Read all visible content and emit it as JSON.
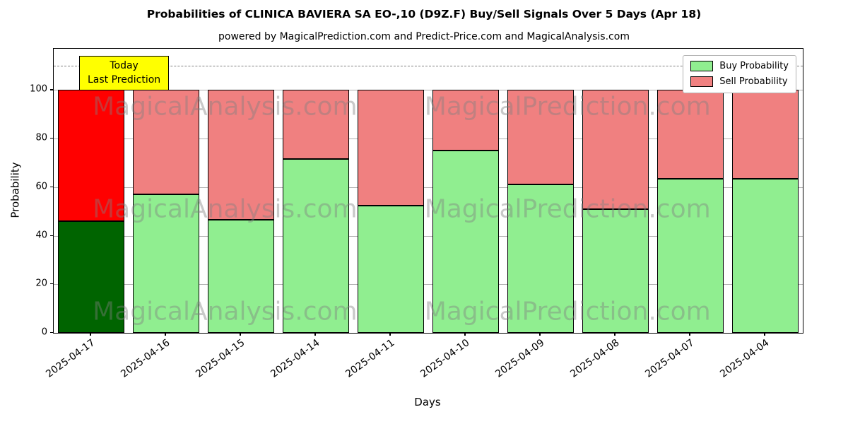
{
  "chart_data": {
    "type": "bar",
    "stacked": true,
    "title": "Probabilities of CLINICA BAVIERA SA EO-,10 (D9Z.F) Buy/Sell Signals Over 5 Days (Apr 18)",
    "subtitle": "powered by MagicalPrediction.com and Predict-Price.com and MagicalAnalysis.com",
    "xlabel": "Days",
    "ylabel": "Probability",
    "categories": [
      "2025-04-17",
      "2025-04-16",
      "2025-04-15",
      "2025-04-14",
      "2025-04-11",
      "2025-04-10",
      "2025-04-09",
      "2025-04-08",
      "2025-04-07",
      "2025-04-04"
    ],
    "series": [
      {
        "name": "Buy Probability",
        "color": "#90ee90",
        "values": [
          46,
          57,
          46.5,
          71.5,
          52.5,
          75,
          61,
          51,
          63.5,
          63.5
        ]
      },
      {
        "name": "Sell Probability",
        "color": "#f08080",
        "values": [
          54,
          43,
          53.5,
          28.5,
          47.5,
          25,
          39,
          49,
          36.5,
          36.5
        ]
      }
    ],
    "highlight": {
      "index": 0,
      "buy_color": "#006400",
      "sell_color": "#ff0000"
    },
    "ylim": [
      0,
      117
    ],
    "yticks": [
      0,
      20,
      40,
      60,
      80,
      100
    ],
    "dashed_line_y": 110,
    "grid": true,
    "legend_position": "top-right",
    "annotation": {
      "line1": "Today",
      "line2": "Last Prediction",
      "bg": "#ffff00"
    },
    "watermarks": [
      {
        "text": "MagicalAnalysis.com",
        "x": 0.052,
        "y": 0.205
      },
      {
        "text": "MagicalPrediction.com",
        "x": 0.495,
        "y": 0.205
      },
      {
        "text": "MagicalAnalysis.com",
        "x": 0.052,
        "y": 0.565
      },
      {
        "text": "MagicalPrediction.com",
        "x": 0.495,
        "y": 0.565
      },
      {
        "text": "MagicalAnalysis.com",
        "x": 0.052,
        "y": 0.925
      },
      {
        "text": "MagicalPrediction.com",
        "x": 0.495,
        "y": 0.925
      }
    ]
  }
}
